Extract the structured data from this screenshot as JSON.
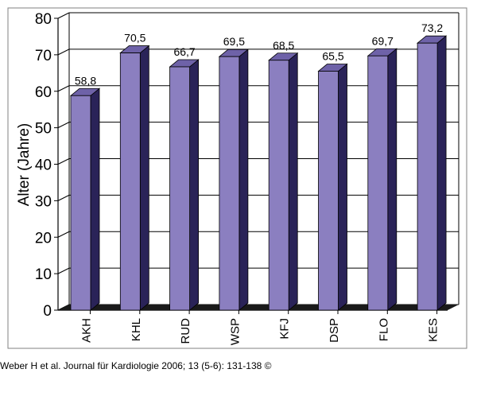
{
  "chart_data": {
    "type": "bar",
    "categories": [
      "AKH",
      "KHL",
      "RUD",
      "WSP",
      "KFJ",
      "DSP",
      "FLO",
      "KES"
    ],
    "values": [
      58.8,
      70.5,
      66.7,
      69.5,
      68.5,
      65.5,
      69.7,
      73.2
    ],
    "value_labels": [
      "58,8",
      "70,5",
      "66,7",
      "69,5",
      "68,5",
      "65,5",
      "69,7",
      "73,2"
    ],
    "ylabel": "Alter (Jahre)",
    "xlabel": "",
    "ylim": [
      0,
      80
    ],
    "yticks": [
      0,
      10,
      20,
      30,
      40,
      50,
      60,
      70,
      80
    ],
    "grid": true,
    "colors": {
      "bar_front": "#8b7fc0",
      "bar_side": "#2a2358",
      "bar_top": "#6e62a8",
      "floor": "#1a1a1a"
    }
  },
  "citation": "Weber H et al. Journal für Kardiologie 2006; 13 (5-6): 131-138 ©"
}
